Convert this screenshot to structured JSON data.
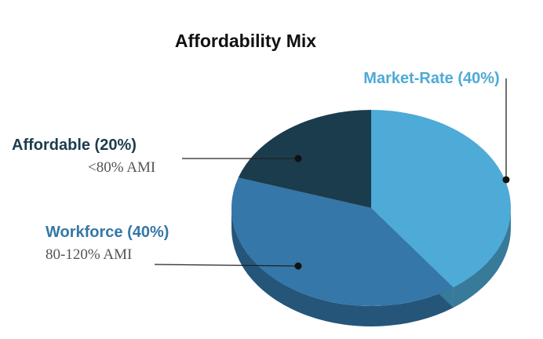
{
  "chart_data": {
    "type": "pie",
    "title": "Affordability Mix",
    "slices": [
      {
        "label": "Market-Rate (40%)",
        "value": 40,
        "sublabel": "",
        "color": "#4eaad6"
      },
      {
        "label": "Workforce (40%)",
        "value": 40,
        "sublabel": "80-120% AMI",
        "color": "#3477a8"
      },
      {
        "label": "Affordable (20%)",
        "value": 20,
        "sublabel": "<80% AMI",
        "color": "#1b3c4d"
      }
    ]
  },
  "colors": {
    "title": "#111111",
    "sublabel": "#555555",
    "leader": "#222222"
  }
}
